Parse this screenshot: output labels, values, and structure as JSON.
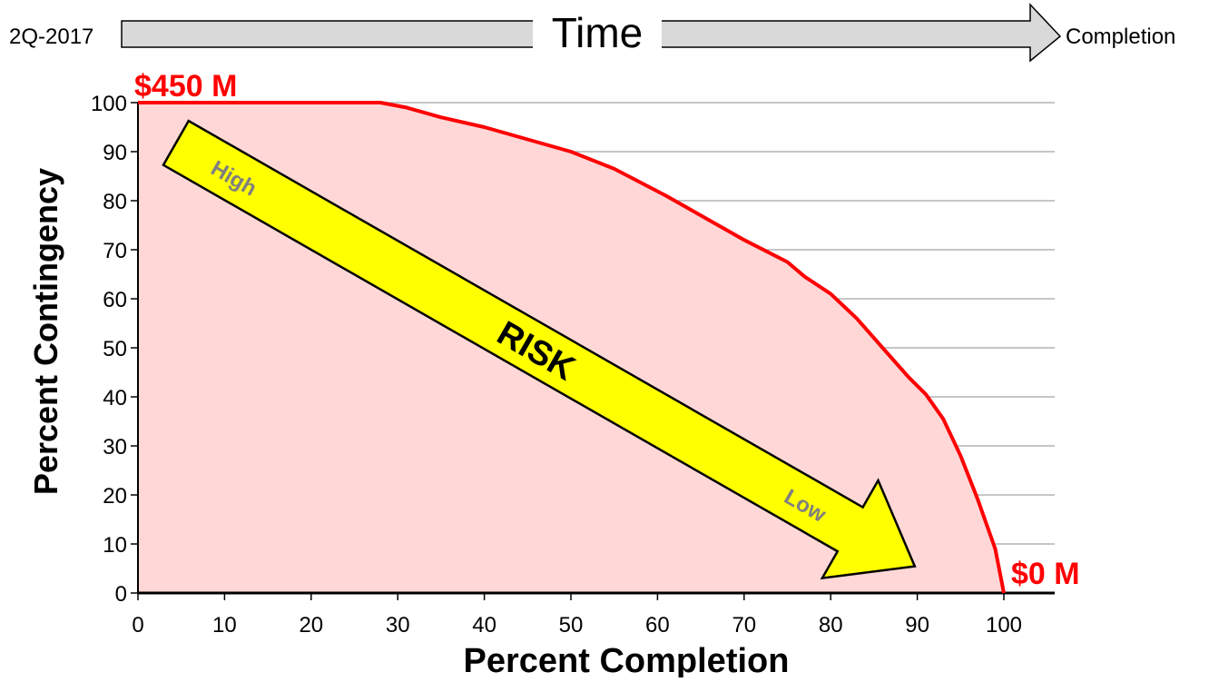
{
  "timeline": {
    "start_label": "2Q-2017",
    "title": "Time",
    "end_label": "Completion"
  },
  "annotations": {
    "start_value": "$450 M",
    "end_value": "$0 M",
    "risk_label": "RISK",
    "risk_high": "High",
    "risk_low": "Low"
  },
  "colors": {
    "curve": "#ff0000",
    "fill": "#ffd7d7",
    "risk_arrow": "#ffff00",
    "timeline_arrow": "#d9d9d9",
    "risk_level_text": "#7f7f7f"
  },
  "chart_data": {
    "type": "area",
    "xlabel": "Percent Completion",
    "ylabel": "Percent Contingency",
    "xlim": [
      0,
      100
    ],
    "ylim": [
      0,
      100
    ],
    "xticks": [
      "0",
      "10",
      "20",
      "30",
      "40",
      "50",
      "60",
      "70",
      "80",
      "90",
      "100"
    ],
    "yticks": [
      "0",
      "10",
      "20",
      "30",
      "40",
      "50",
      "60",
      "70",
      "80",
      "90",
      "100"
    ],
    "grid": "horizontal",
    "series": [
      {
        "x": [
          0,
          28,
          31,
          35,
          40,
          45,
          50,
          55,
          61,
          65,
          70,
          75,
          77,
          80,
          83,
          86,
          89,
          91,
          93,
          95,
          97,
          99,
          100
        ],
        "y": [
          100,
          100,
          99,
          97,
          95,
          92.5,
          90,
          86.5,
          81,
          77,
          72,
          67.5,
          64.5,
          61,
          56,
          50,
          44,
          40.5,
          35.5,
          28,
          19,
          9,
          0
        ]
      }
    ]
  }
}
